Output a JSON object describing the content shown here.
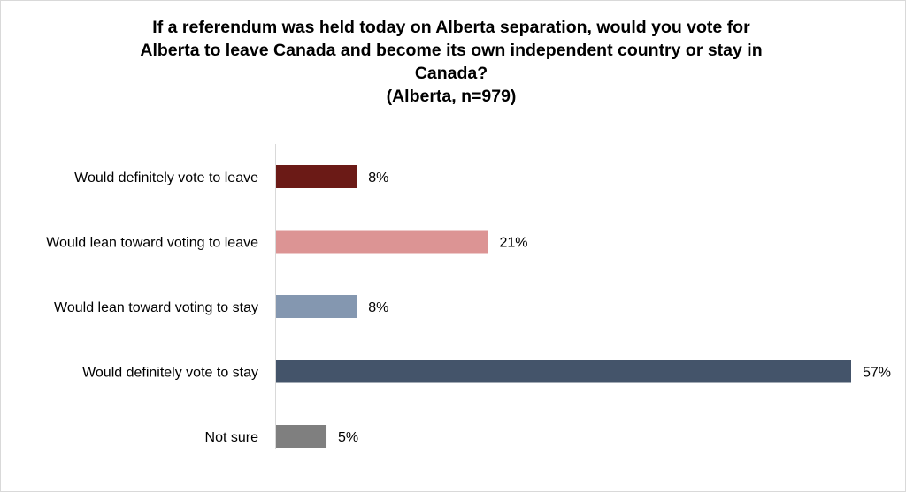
{
  "chart_data": {
    "type": "bar",
    "orientation": "horizontal",
    "title_lines": [
      "If a referendum was held today on Alberta separation, would you vote for",
      "Alberta to leave Canada and become its own independent country or stay in",
      "Canada?",
      "(Alberta, n=979)"
    ],
    "categories": [
      "Would definitely vote to leave",
      "Would lean toward voting to leave",
      "Would lean toward voting to stay",
      "Would definitely vote to stay",
      "Not sure"
    ],
    "values": [
      8,
      21,
      8,
      57,
      5
    ],
    "value_labels": [
      "8%",
      "21%",
      "8%",
      "57%",
      "5%"
    ],
    "colors": [
      "#6b1a16",
      "#dc9494",
      "#8497b0",
      "#44546a",
      "#7f7f7f"
    ],
    "unit": "%",
    "xlim": [
      0,
      57
    ],
    "grid": false,
    "legend": "none"
  }
}
